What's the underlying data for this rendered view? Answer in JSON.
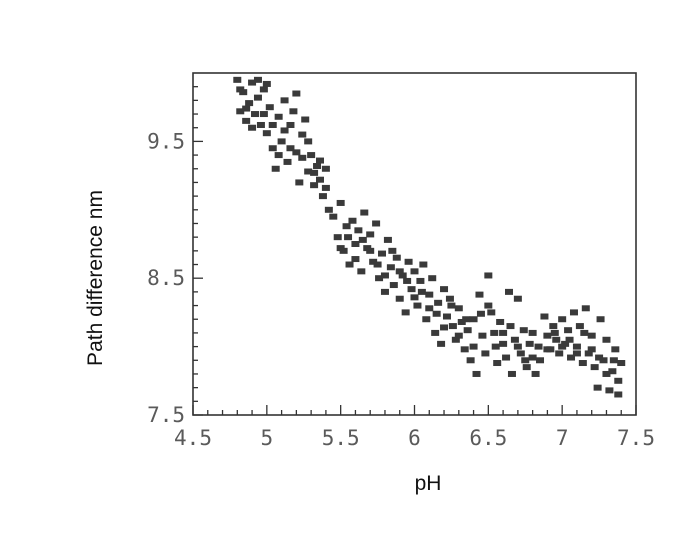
{
  "chart_data": {
    "type": "scatter",
    "title": "",
    "xlabel": "pH",
    "ylabel": "Path difference nm",
    "xlim": [
      4.5,
      7.5
    ],
    "ylim": [
      7.5,
      10.0
    ],
    "x_ticks": [
      "4.5",
      "5",
      "5.5",
      "6",
      "6.5",
      "7",
      "7.5"
    ],
    "y_ticks": [
      "7.5",
      "8.5",
      "9.5"
    ],
    "grid": false,
    "legend": "none",
    "marker_color": "#3a3a3a",
    "series": [
      {
        "points": [
          [
            4.8,
            9.95
          ],
          [
            4.82,
            9.72
          ],
          [
            4.84,
            9.86
          ],
          [
            4.86,
            9.65
          ],
          [
            4.88,
            9.78
          ],
          [
            4.9,
            9.93
          ],
          [
            4.92,
            9.7
          ],
          [
            4.94,
            9.82
          ],
          [
            4.96,
            9.62
          ],
          [
            4.98,
            9.88
          ],
          [
            5.0,
            9.56
          ],
          [
            5.02,
            9.75
          ],
          [
            5.04,
            9.45
          ],
          [
            5.06,
            9.3
          ],
          [
            5.08,
            9.68
          ],
          [
            5.1,
            9.5
          ],
          [
            5.12,
            9.8
          ],
          [
            5.14,
            9.35
          ],
          [
            5.16,
            9.62
          ],
          [
            5.18,
            9.72
          ],
          [
            5.2,
            9.42
          ],
          [
            5.22,
            9.2
          ],
          [
            5.24,
            9.55
          ],
          [
            5.26,
            9.66
          ],
          [
            5.28,
            9.28
          ],
          [
            5.3,
            9.4
          ],
          [
            5.32,
            9.18
          ],
          [
            5.34,
            9.32
          ],
          [
            5.36,
            9.22
          ],
          [
            5.38,
            9.1
          ],
          [
            5.4,
            9.3
          ],
          [
            5.42,
            9.0
          ],
          [
            4.82,
            9.88
          ],
          [
            4.86,
            9.74
          ],
          [
            4.9,
            9.6
          ],
          [
            4.94,
            9.95
          ],
          [
            4.98,
            9.7
          ],
          [
            5.0,
            9.92
          ],
          [
            5.04,
            9.62
          ],
          [
            5.08,
            9.4
          ],
          [
            5.12,
            9.58
          ],
          [
            5.16,
            9.45
          ],
          [
            5.2,
            9.85
          ],
          [
            5.24,
            9.38
          ],
          [
            5.28,
            9.5
          ],
          [
            5.32,
            9.27
          ],
          [
            5.36,
            9.36
          ],
          [
            5.4,
            9.16
          ],
          [
            5.45,
            8.95
          ],
          [
            5.48,
            8.8
          ],
          [
            5.5,
            9.05
          ],
          [
            5.52,
            8.7
          ],
          [
            5.54,
            8.88
          ],
          [
            5.56,
            8.6
          ],
          [
            5.58,
            8.92
          ],
          [
            5.6,
            8.75
          ],
          [
            5.62,
            8.85
          ],
          [
            5.64,
            8.55
          ],
          [
            5.66,
            8.98
          ],
          [
            5.68,
            8.72
          ],
          [
            5.7,
            8.82
          ],
          [
            5.72,
            8.62
          ],
          [
            5.74,
            8.9
          ],
          [
            5.76,
            8.5
          ],
          [
            5.78,
            8.68
          ],
          [
            5.8,
            8.4
          ],
          [
            5.82,
            8.78
          ],
          [
            5.84,
            8.58
          ],
          [
            5.86,
            8.45
          ],
          [
            5.88,
            8.65
          ],
          [
            5.9,
            8.35
          ],
          [
            5.92,
            8.52
          ],
          [
            5.94,
            8.25
          ],
          [
            5.96,
            8.62
          ],
          [
            5.98,
            8.42
          ],
          [
            6.0,
            8.55
          ],
          [
            6.02,
            8.3
          ],
          [
            6.04,
            8.48
          ],
          [
            6.06,
            8.6
          ],
          [
            6.08,
            8.2
          ],
          [
            6.1,
            8.38
          ],
          [
            6.12,
            8.5
          ],
          [
            6.14,
            8.1
          ],
          [
            6.16,
            8.32
          ],
          [
            6.18,
            8.02
          ],
          [
            6.2,
            8.42
          ],
          [
            6.22,
            8.22
          ],
          [
            6.24,
            8.35
          ],
          [
            6.26,
            8.15
          ],
          [
            6.28,
            8.05
          ],
          [
            6.3,
            8.28
          ],
          [
            6.32,
            8.18
          ],
          [
            6.34,
            7.98
          ],
          [
            6.36,
            8.12
          ],
          [
            6.38,
            7.9
          ],
          [
            6.4,
            8.2
          ],
          [
            6.42,
            7.8
          ],
          [
            6.44,
            8.38
          ],
          [
            6.46,
            8.08
          ],
          [
            6.48,
            7.95
          ],
          [
            6.5,
            8.52
          ],
          [
            6.52,
            8.25
          ],
          [
            6.54,
            8.1
          ],
          [
            6.56,
            7.88
          ],
          [
            6.58,
            8.18
          ],
          [
            6.6,
            8.02
          ],
          [
            6.62,
            7.92
          ],
          [
            6.64,
            8.4
          ],
          [
            6.66,
            7.8
          ],
          [
            6.68,
            8.05
          ],
          [
            6.7,
            8.35
          ],
          [
            6.72,
            7.95
          ],
          [
            6.74,
            8.12
          ],
          [
            6.76,
            7.85
          ],
          [
            6.78,
            8.02
          ],
          [
            6.8,
            7.92
          ],
          [
            6.82,
            7.8
          ],
          [
            6.84,
            8.0
          ],
          [
            6.88,
            8.22
          ],
          [
            6.9,
            8.08
          ],
          [
            6.92,
            7.98
          ],
          [
            6.94,
            8.15
          ],
          [
            6.96,
            8.05
          ],
          [
            6.98,
            7.95
          ],
          [
            7.0,
            8.2
          ],
          [
            7.02,
            8.02
          ],
          [
            7.04,
            8.12
          ],
          [
            7.06,
            7.92
          ],
          [
            7.08,
            8.25
          ],
          [
            7.1,
            8.0
          ],
          [
            7.12,
            8.15
          ],
          [
            7.14,
            7.88
          ],
          [
            7.16,
            8.28
          ],
          [
            7.18,
            7.95
          ],
          [
            7.2,
            8.08
          ],
          [
            7.22,
            7.85
          ],
          [
            7.24,
            7.7
          ],
          [
            7.26,
            8.2
          ],
          [
            7.28,
            7.9
          ],
          [
            7.3,
            8.05
          ],
          [
            7.32,
            7.68
          ],
          [
            7.34,
            7.82
          ],
          [
            7.36,
            7.98
          ],
          [
            7.38,
            7.75
          ],
          [
            7.4,
            7.88
          ],
          [
            5.5,
            8.72
          ],
          [
            5.55,
            8.8
          ],
          [
            5.6,
            8.64
          ],
          [
            5.65,
            8.78
          ],
          [
            5.7,
            8.7
          ],
          [
            5.75,
            8.6
          ],
          [
            5.8,
            8.52
          ],
          [
            5.85,
            8.7
          ],
          [
            5.9,
            8.55
          ],
          [
            5.95,
            8.48
          ],
          [
            6.0,
            8.36
          ],
          [
            6.05,
            8.4
          ],
          [
            6.1,
            8.28
          ],
          [
            6.15,
            8.24
          ],
          [
            6.2,
            8.14
          ],
          [
            6.25,
            8.3
          ],
          [
            6.3,
            8.08
          ],
          [
            6.35,
            8.2
          ],
          [
            6.4,
            8.0
          ],
          [
            6.45,
            8.24
          ],
          [
            6.5,
            8.3
          ],
          [
            6.55,
            8.0
          ],
          [
            6.6,
            8.1
          ],
          [
            6.65,
            8.15
          ],
          [
            6.7,
            8.0
          ],
          [
            6.75,
            7.9
          ],
          [
            6.8,
            8.1
          ],
          [
            6.85,
            7.9
          ],
          [
            6.9,
            7.98
          ],
          [
            6.95,
            8.1
          ],
          [
            7.0,
            8.0
          ],
          [
            7.05,
            8.05
          ],
          [
            7.1,
            7.95
          ],
          [
            7.15,
            8.1
          ],
          [
            7.2,
            7.98
          ],
          [
            7.25,
            7.92
          ],
          [
            7.3,
            7.8
          ],
          [
            7.35,
            7.9
          ],
          [
            7.38,
            7.65
          ]
        ]
      }
    ]
  }
}
